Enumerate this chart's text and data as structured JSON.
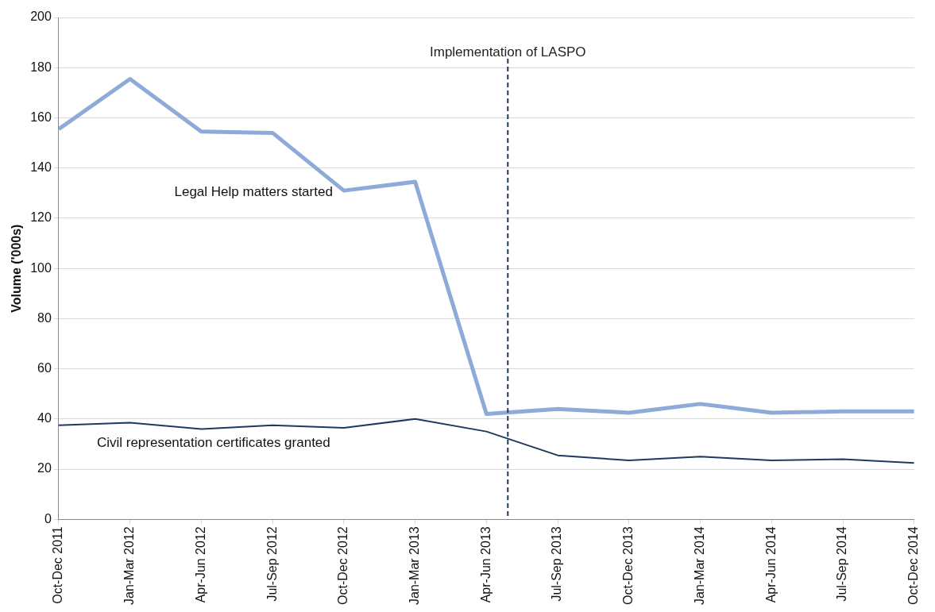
{
  "chart_data": {
    "type": "line",
    "ylabel": "Volume ('000s)",
    "x": [
      "2011-10",
      "2012-01",
      "2012-04",
      "2012-07",
      "2012-10",
      "2013-01",
      "2013-04",
      "2013-07",
      "2013-10",
      "2014-01",
      "2014-04",
      "2014-07",
      "2014-10"
    ],
    "xlim": [
      "2011-10",
      "2014-10"
    ],
    "xticks": [
      {
        "value": "2011-10",
        "label": "Oct-Dec 2011"
      },
      {
        "value": "2012-01",
        "label": "Jan-Mar 2012"
      },
      {
        "value": "2012-04",
        "label": "Apr-Jun 2012"
      },
      {
        "value": "2012-07",
        "label": "Jul-Sep 2012"
      },
      {
        "value": "2012-10",
        "label": "Oct-Dec 2012"
      },
      {
        "value": "2013-01",
        "label": "Jan-Mar 2013"
      },
      {
        "value": "2013-04",
        "label": "Apr-Jun 2013"
      },
      {
        "value": "2013-07",
        "label": "Jul-Sep 2013"
      },
      {
        "value": "2013-10",
        "label": "Oct-Dec 2013"
      },
      {
        "value": "2014-01",
        "label": "Jan-Mar 2014"
      },
      {
        "value": "2014-04",
        "label": "Apr-Jun 2014"
      },
      {
        "value": "2014-07",
        "label": "Jul-Sep 2014"
      },
      {
        "value": "2014-10",
        "label": "Oct-Dec 2014"
      }
    ],
    "ylim": [
      0,
      200
    ],
    "yticks": [
      0,
      20,
      40,
      60,
      80,
      100,
      120,
      140,
      160,
      180,
      200
    ],
    "grid": "y",
    "marker": "none",
    "series": [
      {
        "name": "Legal Help matters started",
        "color": "#8eaad8",
        "values": [
          155.5,
          175.5,
          154.5,
          154,
          131,
          134.5,
          42,
          44,
          42.5,
          46,
          42.5,
          43,
          43
        ]
      },
      {
        "name": "Civil representation certificates granted",
        "color": "#1f3a60",
        "values": [
          37.5,
          38.5,
          36,
          37.5,
          36.5,
          40,
          35,
          25.5,
          23.5,
          25,
          23.5,
          24,
          22.5
        ]
      }
    ],
    "ref_lines": [
      {
        "axis": "x",
        "value": "2013-04-28",
        "label": "Implementation of LASPO",
        "color": "#1f3a60",
        "line_style": "dashed"
      }
    ]
  }
}
